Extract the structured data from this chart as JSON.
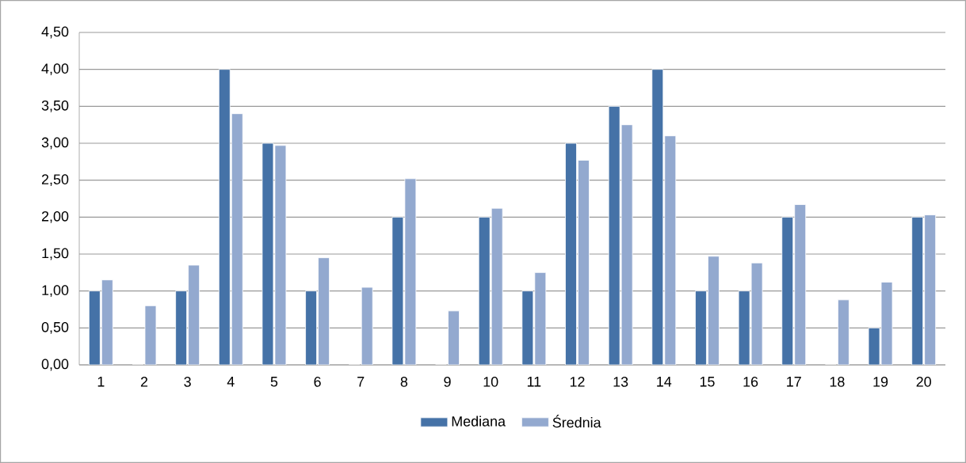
{
  "chart_data": {
    "type": "bar",
    "categories": [
      "1",
      "2",
      "3",
      "4",
      "5",
      "6",
      "7",
      "8",
      "9",
      "10",
      "11",
      "12",
      "13",
      "14",
      "15",
      "16",
      "17",
      "18",
      "19",
      "20"
    ],
    "series": [
      {
        "name": "Mediana",
        "color": "#4572a7",
        "values": [
          1,
          0,
          1,
          4,
          3,
          1,
          0,
          2,
          0,
          2,
          1,
          3,
          3.5,
          4,
          1,
          1,
          2,
          0,
          0.5,
          2
        ]
      },
      {
        "name": "Średnia",
        "color": "#93a9cf",
        "values": [
          1.15,
          0.8,
          1.35,
          3.4,
          2.97,
          1.45,
          1.05,
          2.52,
          0.73,
          2.12,
          1.25,
          2.77,
          3.25,
          3.1,
          1.47,
          1.38,
          2.17,
          0.88,
          1.12,
          2.03
        ]
      }
    ],
    "ylim": [
      0,
      4.5
    ],
    "yticks": [
      {
        "value": 0,
        "label": "0,00"
      },
      {
        "value": 0.5,
        "label": "0,50"
      },
      {
        "value": 1,
        "label": "1,00"
      },
      {
        "value": 1.5,
        "label": "1,50"
      },
      {
        "value": 2,
        "label": "2,00"
      },
      {
        "value": 2.5,
        "label": "2,50"
      },
      {
        "value": 3,
        "label": "3,00"
      },
      {
        "value": 3.5,
        "label": "3,50"
      },
      {
        "value": 4,
        "label": "4,00"
      },
      {
        "value": 4.5,
        "label": "4,50"
      }
    ],
    "grid": "y",
    "legend": "bottom"
  }
}
